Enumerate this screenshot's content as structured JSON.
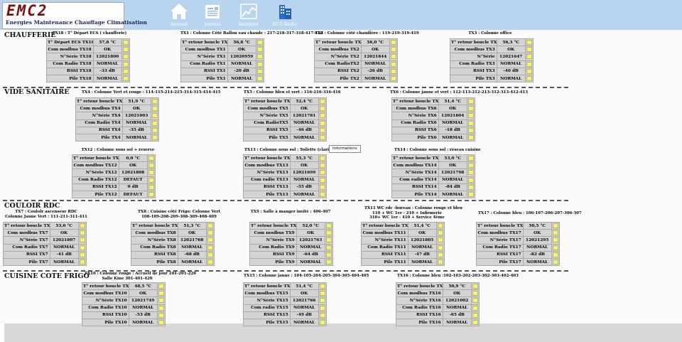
{
  "header": {
    "logo_text": "EMC2",
    "logo_subtitle": "Energies Maintenance Chauffage Climatisation",
    "nav": [
      {
        "id": "accueil",
        "label": "Accueil",
        "icon": "home-icon"
      },
      {
        "id": "journal",
        "label": "Journal",
        "icon": "journal-icon"
      },
      {
        "id": "analyses",
        "label": "Analyses",
        "icon": "chart-icon"
      },
      {
        "id": "ecs",
        "label": "ECS Radio",
        "icon": "building-icon"
      }
    ]
  },
  "tooltip": "Informations",
  "sections": [
    {
      "id": "chaufferie",
      "title": "CHAUFFERIE"
    },
    {
      "id": "vide-sanitaire",
      "title": "VIDE SANITAIRE"
    },
    {
      "id": "couloir-rdc",
      "title": "COULOIR RDC"
    },
    {
      "id": "cuisine-cote-frigo",
      "title": "CUISINE COTE FRIGO"
    }
  ],
  "devices": [
    {
      "id": "tx18",
      "title": "TX18 : T° Départ ECS ( chaufferie)",
      "rows": [
        [
          "T° Départ ECS TX18",
          "57,8 °C"
        ],
        [
          "Com modbus TX18",
          "OK"
        ],
        [
          "N°Série TX18",
          "12021800"
        ],
        [
          "Com Radio TX18",
          "NORMAL"
        ],
        [
          "RSSI TX18",
          "-33 dB"
        ],
        [
          "Pile TX18",
          "NORMAL"
        ]
      ]
    },
    {
      "id": "tx1",
      "title": "TX1 : Colonne Côté Ballon eau chaude : 217-218-317-318-417-418",
      "rows": [
        [
          "T° retour boucle TX1",
          "56,8 °C"
        ],
        [
          "Com modbus TX1",
          "OK"
        ],
        [
          "N°Série TX1",
          "12020959"
        ],
        [
          "Com Radio TX1",
          "NORMAL"
        ],
        [
          "RSSI TX1",
          "-20 dB"
        ],
        [
          "Pile TX1",
          "NORMAL"
        ]
      ]
    },
    {
      "id": "tx2",
      "title": "TX2 : Colonne côté chaudière : 119-219-319-419",
      "rows": [
        [
          "T° retour boucle TX2",
          "56,0 °C"
        ],
        [
          "Com modbus TX2",
          "OK"
        ],
        [
          "N°Série TX2",
          "12021844"
        ],
        [
          "Com RadioTX2",
          "NORMAL"
        ],
        [
          "RSSI TX2",
          "-26 dB"
        ],
        [
          "Pile TX2",
          "NORMAL"
        ]
      ]
    },
    {
      "id": "tx3",
      "title": "TX3 : Colonne office",
      "rows": [
        [
          "T° retour boucle TX3",
          "56,3 °C"
        ],
        [
          "Com modbus TX3",
          "OK"
        ],
        [
          "N°Série",
          "12021647"
        ],
        [
          "Com Radio TX3",
          "NORMAL"
        ],
        [
          "RSSI TX3",
          "-40 dB"
        ],
        [
          "Pile TX3",
          "NORMAL"
        ]
      ]
    },
    {
      "id": "tx4",
      "title": "TX4 : Colonne Vert et rouge : 114-115-214-215-314-315-414-415",
      "rows": [
        [
          "T° retour boucle TX4",
          "51,9 °C"
        ],
        [
          "Com modbus TX4",
          "OK"
        ],
        [
          "N°Série TX4",
          "12021003"
        ],
        [
          "Com Radio TX4",
          "NORMAL"
        ],
        [
          "RSSI TX4",
          "-35 dB"
        ],
        [
          "Pile TX4",
          "NORMAL"
        ]
      ]
    },
    {
      "id": "tx5",
      "title": "TX5 : Colonne bleu et vert : 116-216-316-416",
      "rows": [
        [
          "T° retour boucle TX5",
          "52,4 °C"
        ],
        [
          "Com modbus TX5",
          "OK"
        ],
        [
          "N°Série TX5",
          "12021781"
        ],
        [
          "Com RadioTX5",
          "NORMAL"
        ],
        [
          "RSSI TX5",
          "-46 dB"
        ],
        [
          "Pile TX5",
          "NORMAL"
        ]
      ]
    },
    {
      "id": "tx6",
      "title": "TX6 : Colonne jaune et vert : 112-113-212-213-312-313-412-413",
      "rows": [
        [
          "T° retour boucle TX6",
          "51,4 °C"
        ],
        [
          "Com modbus TX6",
          "OK"
        ],
        [
          "N°Série TX6",
          "12021804"
        ],
        [
          "Com Radio TX6",
          "NORMAL"
        ],
        [
          "RSSI TX6",
          "-18 dB"
        ],
        [
          "Pile TX6",
          "NORMAL"
        ]
      ]
    },
    {
      "id": "tx12",
      "title": "TX12 : Colonne sous sol + reserve",
      "rows": [
        [
          "T° retour boucle TX12",
          "0,0 °C"
        ],
        [
          "Com modbus TX12",
          "OK"
        ],
        [
          "N°Série TX12",
          "12021808"
        ],
        [
          "Com Radio TX12",
          "DEFAUT"
        ],
        [
          "RSSI TX12",
          "0 dB"
        ],
        [
          "Pile TX12",
          "DEFAUT"
        ]
      ]
    },
    {
      "id": "tx13",
      "title": "TX13 : Colonne sous sol : Toilette (clarinett...",
      "rows": [
        [
          "T° retour boucle TX13",
          "55,3 °C"
        ],
        [
          "Com modbus TX13",
          "OK"
        ],
        [
          "N°Série TX13",
          "12021699"
        ],
        [
          "Com radio TX13",
          "NORMAL"
        ],
        [
          "RSSI TX13",
          "-55 dB"
        ],
        [
          "Pile TX13",
          "NORMAL"
        ]
      ]
    },
    {
      "id": "tx14",
      "title": "TX14 : Colonne sous sol : réseau cuisine",
      "rows": [
        [
          "T° retour boucle TX14",
          "53,0 °C"
        ],
        [
          "Com modbus TX14",
          "OK"
        ],
        [
          "N°Série TX14",
          "12021798"
        ],
        [
          "Com radio TX14",
          "NORMAL"
        ],
        [
          "RSSI TX14",
          "-84 dB"
        ],
        [
          "Pile TX14",
          "NORMAL"
        ]
      ]
    },
    {
      "id": "tx7",
      "title": "TX7 : Coulolr ascenseur RDC\nColonne Jaune Vert : 111-211-311-411",
      "rows": [
        [
          "T° retour boucle TX7",
          "53,0 °C"
        ],
        [
          "Com modbus TX7",
          "OK"
        ],
        [
          "N°Série TX7",
          "12021807"
        ],
        [
          "Com Radio TX7",
          "NORMAL"
        ],
        [
          "RSSI TX7",
          "-41 dB"
        ],
        [
          "Pile TX7",
          "NORMAL"
        ]
      ]
    },
    {
      "id": "tx8",
      "title": "TX8 : Cuisine côté Frigo: Colonne Vert\n108-109-208-209-308-309-408-409",
      "rows": [
        [
          "T° retour boucle TX8",
          "51,3 °C"
        ],
        [
          "Com modbus TX8",
          "OK"
        ],
        [
          "N°Série TX8",
          "12021768"
        ],
        [
          "Com Radio TX8",
          "NORMAL"
        ],
        [
          "RSSI TX8",
          "-68 dB"
        ],
        [
          "Pile TX8",
          "NORMAL"
        ]
      ]
    },
    {
      "id": "tx9",
      "title": "TX9 : Salle à manger invité : 406-407",
      "rows": [
        [
          "T° retour boucle TX9",
          "52,0 °C"
        ],
        [
          "Com modbus TX9",
          "OK"
        ],
        [
          "N°Série TX9",
          "12021763"
        ],
        [
          "Com Radio TX9",
          "NORMAL"
        ],
        [
          "RSSI TX9",
          "-64 dB"
        ],
        [
          "Pile TX9",
          "NORMAL"
        ]
      ]
    },
    {
      "id": "tx11",
      "title": "TX11 WC rdc -bureau : Colonne rouge et bleu\n110 + WC 1er - 210 + Infirmerie\n310+ WC 1er - 410 + Service 4ème",
      "rows": [
        [
          "T° retour boucle TX11",
          "51,4 °C"
        ],
        [
          "Com modbus TX11",
          "OK"
        ],
        [
          "N°Série TX11",
          "12021805"
        ],
        [
          "Com Radio TX11",
          "NORMAL"
        ],
        [
          "RSSI TX11",
          "-47 dB"
        ],
        [
          "Pile TX11",
          "NORMAL"
        ]
      ]
    },
    {
      "id": "tx17",
      "title": "TX17 : Colonne bleu : 106-107-206-207-306-307",
      "rows": [
        [
          "T° retour boucle TX17",
          "50,5 °C"
        ],
        [
          "Com modbus TX17",
          "OK"
        ],
        [
          "N°Série TX17",
          "12021295"
        ],
        [
          "Com Radio TX17",
          "NORMAL"
        ],
        [
          "RSSI TX17",
          "-82 dB"
        ],
        [
          "Pile TX17",
          "NORMAL"
        ]
      ]
    },
    {
      "id": "tx10",
      "title": "TX10 : Colonne rouge : Accueil de jour 101-201-220\nSalle Kine 301-401-420",
      "rows": [
        [
          "T° retour boucle TX10",
          "48,5 °C"
        ],
        [
          "Com modbus TX10",
          "OK"
        ],
        [
          "N°Série TX10",
          "12021749"
        ],
        [
          "Com Radio TX10",
          "NORMAL"
        ],
        [
          "RSSI TX10",
          "-53 dB"
        ],
        [
          "Pile TX10",
          "NORMAL"
        ]
      ]
    },
    {
      "id": "tx15",
      "title": "TX15 : Colonne jaune : 104-105-204-205-304-305-404-405",
      "rows": [
        [
          "T° retour boucle TX15",
          "51,4 °C"
        ],
        [
          "Com modbus TX15",
          "OK"
        ],
        [
          "N°Série TX15",
          "12021766"
        ],
        [
          "Com radio TX15",
          "NORMAL"
        ],
        [
          "RSSI TX15",
          "-49 dB"
        ],
        [
          "Pile TX15",
          "NORMAL"
        ]
      ]
    },
    {
      "id": "tx16",
      "title": "TX16 : Colonne bleu :102-103-202-203-302-303-402-403",
      "rows": [
        [
          "T° retour boucle TX16",
          "50,9 °C"
        ],
        [
          "Com modbus TX16",
          "OK"
        ],
        [
          "N°Série TX16",
          "12021002"
        ],
        [
          "Com Radio TX16",
          "NORMAL"
        ],
        [
          "RSSI TX16",
          "-65 dB"
        ],
        [
          "Pile TX16",
          "NORMAL"
        ]
      ]
    }
  ]
}
